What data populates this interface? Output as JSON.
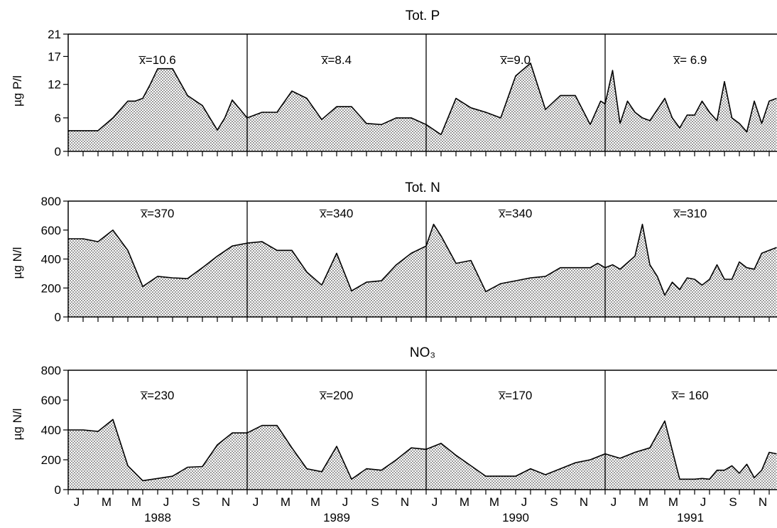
{
  "years": [
    "1988",
    "1989",
    "1990",
    "1991"
  ],
  "month_labels": [
    "J",
    "M",
    "M",
    "J",
    "S",
    "N"
  ],
  "colors": {
    "line": "#000000",
    "fill_dot": "#555555",
    "background": "#ffffff"
  },
  "chart_data": [
    {
      "type": "area",
      "title": "Tot. P",
      "ylabel": "µg P/l",
      "ylim": [
        0,
        21
      ],
      "yticks": [
        0,
        6,
        12,
        17,
        21
      ],
      "x_unit": "month index from Jan 1988",
      "means": [
        "x̅=10.6",
        "x̅=8.4",
        "x̅=9.0",
        "x̅= 6.9"
      ],
      "x": [
        0,
        1,
        2,
        3,
        4,
        4.5,
        5,
        5.5,
        6,
        7,
        8,
        9,
        9.5,
        10,
        10.5,
        11,
        12,
        13,
        14,
        15,
        16,
        17,
        18,
        19,
        20,
        21,
        22,
        23,
        24,
        25,
        26,
        27,
        28,
        29,
        30,
        31,
        32,
        33,
        34,
        35,
        35.7,
        36,
        36.5,
        37,
        37.5,
        38,
        38.5,
        39,
        40,
        40.5,
        41,
        41.5,
        42,
        42.5,
        43,
        43.5,
        44,
        44.5,
        45,
        45.5,
        46,
        46.5,
        47,
        47.5
      ],
      "values": [
        3.7,
        3.7,
        3.7,
        6,
        9,
        9,
        9.5,
        12,
        14.8,
        14.8,
        10,
        8.2,
        6,
        3.8,
        6,
        9.2,
        6,
        7,
        7,
        10.8,
        9.5,
        5.7,
        8,
        8,
        5,
        4.8,
        6,
        6,
        4.8,
        3,
        9.5,
        7.8,
        7,
        6,
        13.5,
        15.8,
        7.5,
        10,
        10,
        4.8,
        9,
        8.5,
        14.5,
        5,
        9,
        7,
        6,
        5.5,
        9.5,
        6,
        4.2,
        6.5,
        6.5,
        9,
        7,
        5.5,
        12.5,
        6,
        5,
        3.5,
        9,
        5,
        9,
        9.5
      ]
    },
    {
      "type": "area",
      "title": "Tot. N",
      "ylabel": "µg N/l",
      "ylim": [
        0,
        800
      ],
      "yticks": [
        0,
        200,
        400,
        600,
        800
      ],
      "x_unit": "month index from Jan 1988",
      "means": [
        "x̅=370",
        "x̅=340",
        "x̅=340",
        "x̅=310"
      ],
      "x": [
        0,
        1,
        2,
        3,
        4,
        5,
        6,
        7,
        8,
        9,
        10,
        11,
        12,
        13,
        14,
        15,
        16,
        17,
        18,
        19,
        20,
        21,
        22,
        23,
        24,
        24.5,
        25,
        26,
        27,
        28,
        29,
        30,
        31,
        32,
        33,
        34,
        35,
        35.5,
        36,
        36.5,
        37,
        38,
        38.5,
        39,
        39.5,
        40,
        40.5,
        41,
        41.5,
        42,
        42.5,
        43,
        43.5,
        44,
        44.5,
        45,
        45.5,
        46,
        46.5,
        47,
        47.5
      ],
      "values": [
        540,
        540,
        520,
        600,
        460,
        210,
        280,
        270,
        265,
        340,
        420,
        490,
        510,
        520,
        460,
        460,
        310,
        220,
        440,
        180,
        240,
        250,
        360,
        440,
        490,
        640,
        560,
        370,
        390,
        175,
        230,
        250,
        270,
        280,
        340,
        340,
        340,
        370,
        340,
        360,
        330,
        420,
        640,
        360,
        280,
        150,
        240,
        190,
        270,
        260,
        220,
        260,
        360,
        260,
        260,
        380,
        340,
        330,
        440,
        460,
        480
      ]
    },
    {
      "type": "area",
      "title": "NO₃",
      "ylabel": "µg N/l",
      "ylim": [
        0,
        800
      ],
      "yticks": [
        0,
        200,
        400,
        600,
        800
      ],
      "x_unit": "month index from Jan 1988",
      "means": [
        "x̅=230",
        "x̅=200",
        "x̅=170",
        "x̅= 160"
      ],
      "x": [
        0,
        1,
        2,
        3,
        4,
        5,
        6,
        7,
        8,
        9,
        10,
        11,
        12,
        13,
        14,
        15,
        16,
        17,
        18,
        19,
        20,
        21,
        22,
        23,
        24,
        25,
        26,
        27,
        28,
        29,
        30,
        31,
        32,
        33,
        34,
        35,
        36,
        37,
        38,
        39,
        40,
        41,
        42,
        42.5,
        43,
        43.5,
        44,
        44.5,
        45,
        45.5,
        46,
        46.5,
        47,
        47.5
      ],
      "values": [
        400,
        400,
        390,
        470,
        160,
        60,
        75,
        90,
        150,
        155,
        300,
        380,
        380,
        430,
        430,
        280,
        140,
        120,
        290,
        70,
        140,
        130,
        200,
        280,
        270,
        310,
        230,
        160,
        90,
        90,
        90,
        140,
        100,
        140,
        180,
        200,
        240,
        210,
        250,
        280,
        460,
        70,
        70,
        75,
        70,
        130,
        130,
        160,
        110,
        170,
        80,
        130,
        250,
        240
      ]
    }
  ]
}
